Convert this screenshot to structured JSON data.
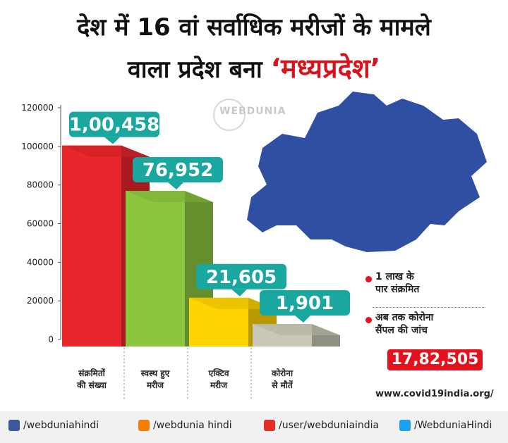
{
  "title_line1": "देश में 16 वां सर्वाधिक मरीजों के मामले",
  "title_line2_prefix": "वाला प्रदेश बना ",
  "title_highlight": "‘मध्यप्रदेश’",
  "logo_text": "WEBDUNIA",
  "chart_data": {
    "type": "bar",
    "categories": [
      "संक्रमितों की संख्या",
      "स्वस्थ हुए मरीज",
      "एक्टिव मरीज",
      "कोरोना से मौतें"
    ],
    "category_lines": [
      [
        "संक्रमितों",
        "की संख्या"
      ],
      [
        "स्वस्थ हुए",
        "मरीज"
      ],
      [
        "एक्टिव",
        "मरीज"
      ],
      [
        "कोरोना",
        "से मौतें"
      ]
    ],
    "values": [
      100458,
      76952,
      21605,
      1901
    ],
    "data_labels": [
      "1,00,458",
      "76,952",
      "21,605",
      "1,901"
    ],
    "colors": [
      "#e8262b",
      "#8cc63f",
      "#ffd400",
      "#c8c8b4"
    ],
    "bubble_color": "#1aa7a0",
    "ylim": [
      0,
      120000
    ],
    "yticks": [
      0,
      20000,
      40000,
      60000,
      80000,
      100000,
      120000
    ],
    "ytick_labels": [
      "0",
      "20000",
      "40000",
      "60000",
      "80000",
      "100000",
      "120000"
    ]
  },
  "notes": [
    {
      "lines": [
        "1 लाख के",
        "पार संक्रमित"
      ]
    },
    {
      "lines": [
        "अब तक कोरोना",
        "सैंपल की जांच"
      ]
    }
  ],
  "tests_value": "17,82,505",
  "source": "www.covid19india.org/",
  "footer": [
    {
      "icon": "facebook-icon",
      "color": "#3b5998",
      "text": "/webduniahindi"
    },
    {
      "icon": "blogger-icon",
      "color": "#f57d00",
      "text": "/webdunia hindi"
    },
    {
      "icon": "youtube-icon",
      "color": "#e52d27",
      "text": "/user/webduniaindia"
    },
    {
      "icon": "twitter-icon",
      "color": "#1da1f2",
      "text": "/WebduniaHindi"
    }
  ]
}
